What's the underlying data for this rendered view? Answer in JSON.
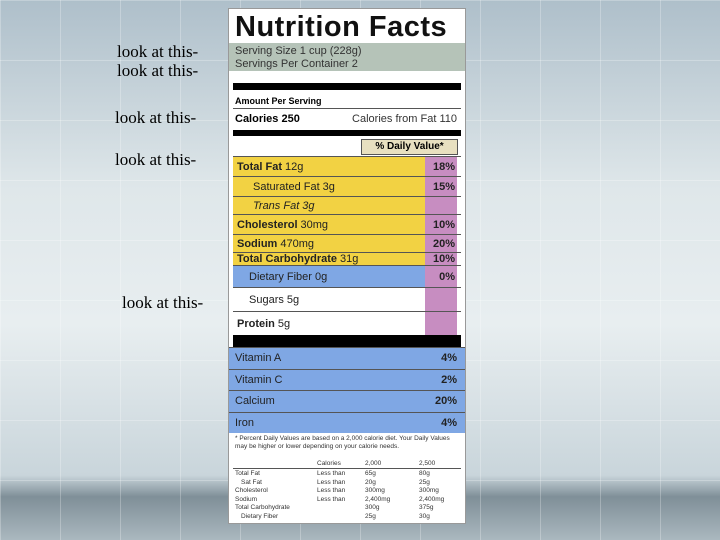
{
  "annotations": [
    "look at this-",
    "look at this-",
    "look at this-",
    "look at this-",
    "look at this-"
  ],
  "label": {
    "title": "Nutrition Facts",
    "serving_size": "Serving Size 1 cup (228g)",
    "servings_per_container": "Servings Per Container  2",
    "amount_per_serving": "Amount Per Serving",
    "calories": "Calories 250",
    "calories_from_fat": "Calories from Fat 110",
    "daily_value_header": "% Daily Value*",
    "nutrients": [
      {
        "name": "Total Fat",
        "amount": "12g",
        "dv": "18%"
      },
      {
        "name": "Saturated Fat",
        "amount": "3g",
        "dv": "15%"
      },
      {
        "name": "Trans Fat",
        "amount": "3g"
      },
      {
        "name": "Cholesterol",
        "amount": "30mg",
        "dv": "10%"
      },
      {
        "name": "Sodium",
        "amount": "470mg",
        "dv": "20%"
      },
      {
        "name": "Total Carbohydrate",
        "amount": "31g",
        "dv": "10%"
      },
      {
        "name": "Dietary Fiber",
        "amount": "0g",
        "dv": "0%"
      },
      {
        "name": "Sugars",
        "amount": "5g"
      },
      {
        "name": "Protein",
        "amount": "5g"
      }
    ],
    "vitamins": [
      {
        "name": "Vitamin A",
        "dv": "4%"
      },
      {
        "name": "Vitamin C",
        "dv": "2%"
      },
      {
        "name": "Calcium",
        "dv": "20%"
      },
      {
        "name": "Iron",
        "dv": "4%"
      }
    ],
    "footnote": "* Percent Daily Values are based on a 2,000 calorie diet. Your Daily Values may be higher or lower depending on your calorie needs.",
    "footnote_table": {
      "header": [
        "Calories",
        "2,000",
        "2,500"
      ],
      "rows": [
        [
          "Total Fat",
          "Less than",
          "65g",
          "80g"
        ],
        [
          "Sat Fat",
          "Less than",
          "20g",
          "25g"
        ],
        [
          "Cholesterol",
          "Less than",
          "300mg",
          "300mg"
        ],
        [
          "Sodium",
          "Less than",
          "2,400mg",
          "2,400mg"
        ],
        [
          "Total Carbohydrate",
          "",
          "300g",
          "375g"
        ],
        [
          "Dietary Fiber",
          "",
          "25g",
          "30g"
        ]
      ]
    }
  }
}
